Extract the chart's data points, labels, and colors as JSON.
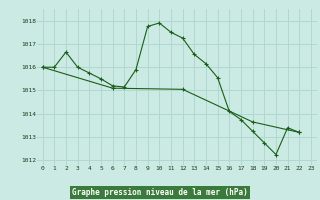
{
  "title": "Graphe pression niveau de la mer (hPa)",
  "bg_color": "#cceae4",
  "label_bg_color": "#3a7a3a",
  "grid_color": "#b0d8d0",
  "line_color": "#1a5e1a",
  "xlim": [
    -0.5,
    23.5
  ],
  "ylim": [
    1011.8,
    1018.5
  ],
  "yticks": [
    1012,
    1013,
    1014,
    1015,
    1016,
    1017,
    1018
  ],
  "xticks": [
    0,
    1,
    2,
    3,
    4,
    5,
    6,
    7,
    8,
    9,
    10,
    11,
    12,
    13,
    14,
    15,
    16,
    17,
    18,
    19,
    20,
    21,
    22,
    23
  ],
  "series1_x": [
    0,
    1,
    2,
    3,
    4,
    5,
    6,
    7,
    8,
    9,
    10,
    11,
    12,
    13,
    14,
    15,
    16,
    17,
    18,
    19,
    20,
    21,
    22
  ],
  "series1_y": [
    1016.0,
    1016.0,
    1016.65,
    1016.0,
    1015.75,
    1015.5,
    1015.2,
    1015.15,
    1015.9,
    1017.75,
    1017.9,
    1017.5,
    1017.25,
    1016.55,
    1016.15,
    1015.55,
    1014.1,
    1013.75,
    1013.25,
    1012.75,
    1012.25,
    1013.4,
    1013.2
  ],
  "series2_x": [
    0,
    6,
    12,
    18,
    22
  ],
  "series2_y": [
    1016.0,
    1015.1,
    1015.05,
    1013.65,
    1013.2
  ]
}
